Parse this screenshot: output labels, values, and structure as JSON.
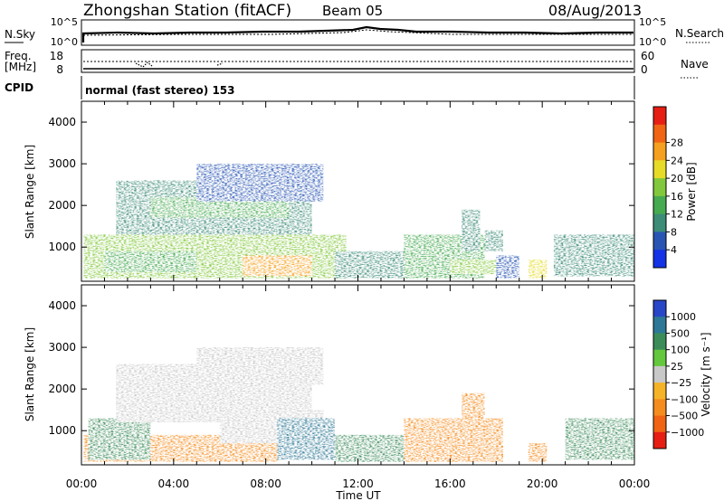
{
  "header": {
    "station": "Zhongshan Station (fitACF)",
    "beam": "Beam 05",
    "date": "08/Aug/2013"
  },
  "strip_panels": {
    "nsky": {
      "label": "N.Sky",
      "ticks": [
        "10^5",
        "10^0"
      ]
    },
    "nsearch": {
      "label": "N.Search",
      "ticks": [
        "10^5",
        "10^0"
      ]
    },
    "freq": {
      "label_line1": "Freq.",
      "label_line2": "[MHz]",
      "ticks": [
        "18",
        "8"
      ]
    },
    "nave": {
      "label": "Nave",
      "ticks": [
        "60",
        "0"
      ]
    },
    "cpid": {
      "label": "CPID",
      "text": "normal (fast stereo) 153"
    }
  },
  "chart_data": [
    {
      "type": "heatmap",
      "name": "power",
      "xlabel": "Time UT",
      "ylabel": "Slant Range [km]",
      "xlim": [
        0,
        24
      ],
      "ylim": [
        180,
        4500
      ],
      "x_ticks": [
        "00:00",
        "04:00",
        "08:00",
        "12:00",
        "16:00",
        "20:00",
        "00:00"
      ],
      "y_ticks": [
        1000,
        2000,
        3000,
        4000
      ],
      "colorbar": {
        "label": "Power [dB]",
        "ticks": [
          "4",
          "8",
          "12",
          "16",
          "20",
          "24",
          "28"
        ],
        "colors": [
          "#1432e6",
          "#2855b4",
          "#3c8c78",
          "#46aa50",
          "#82c83c",
          "#e6dc28",
          "#f5a01e",
          "#f06414",
          "#e61e14"
        ]
      },
      "regions": [
        {
          "t0": 0.1,
          "t1": 11.5,
          "r0": 250,
          "r1": 1300,
          "value": 17
        },
        {
          "t0": 7.0,
          "t1": 10.0,
          "r0": 300,
          "r1": 800,
          "value": 27
        },
        {
          "t0": 1.0,
          "t1": 5.0,
          "r0": 400,
          "r1": 900,
          "value": 14
        },
        {
          "t0": 1.5,
          "t1": 10.0,
          "r0": 1300,
          "r1": 2600,
          "value": 9
        },
        {
          "t0": 3.0,
          "t1": 9.0,
          "r0": 1700,
          "r1": 2200,
          "value": 13
        },
        {
          "t0": 5.0,
          "t1": 10.5,
          "r0": 2100,
          "r1": 3000,
          "value": 6
        },
        {
          "t0": 11.0,
          "t1": 14.0,
          "r0": 250,
          "r1": 900,
          "value": 10
        },
        {
          "t0": 14.0,
          "t1": 17.5,
          "r0": 250,
          "r1": 1300,
          "value": 13
        },
        {
          "t0": 16.0,
          "t1": 18.2,
          "r0": 350,
          "r1": 700,
          "value": 19
        },
        {
          "t0": 16.5,
          "t1": 17.3,
          "r0": 900,
          "r1": 1900,
          "value": 11
        },
        {
          "t0": 17.5,
          "t1": 18.3,
          "r0": 900,
          "r1": 1400,
          "value": 9
        },
        {
          "t0": 18.0,
          "t1": 19.0,
          "r0": 250,
          "r1": 800,
          "value": 6
        },
        {
          "t0": 19.4,
          "t1": 20.2,
          "r0": 250,
          "r1": 700,
          "value": 23
        },
        {
          "t0": 20.5,
          "t1": 24.0,
          "r0": 300,
          "r1": 1300,
          "value": 8
        }
      ]
    },
    {
      "type": "heatmap",
      "name": "velocity",
      "xlabel": "Time UT",
      "ylabel": "Slant Range [km]",
      "xlim": [
        0,
        24
      ],
      "ylim": [
        180,
        4500
      ],
      "x_ticks": [
        "00:00",
        "04:00",
        "08:00",
        "12:00",
        "16:00",
        "20:00",
        "00:00"
      ],
      "y_ticks": [
        1000,
        2000,
        3000,
        4000
      ],
      "colorbar": {
        "label": "Velocity [m s⁻¹]",
        "ticks": [
          "1000",
          "500",
          "100",
          "25",
          "−25",
          "−100",
          "−500",
          "−1000"
        ],
        "colors": [
          "#2846c8",
          "#2d7896",
          "#3c8c5a",
          "#64c83c",
          "#c8c8c8",
          "#f5b428",
          "#f58c1e",
          "#f06414",
          "#e61e14"
        ]
      },
      "regions": [
        {
          "t0": 0.1,
          "t1": 8.5,
          "r0": 250,
          "r1": 900,
          "value": -150
        },
        {
          "t0": 0.3,
          "t1": 3.0,
          "r0": 300,
          "r1": 1300,
          "value": 150
        },
        {
          "t0": 1.5,
          "t1": 10.0,
          "r0": 1200,
          "r1": 2600,
          "value": 0
        },
        {
          "t0": 5.0,
          "t1": 10.5,
          "r0": 2100,
          "r1": 3000,
          "value": 10
        },
        {
          "t0": 6.0,
          "t1": 10.5,
          "r0": 700,
          "r1": 1500,
          "value": 5
        },
        {
          "t0": 8.5,
          "t1": 11.0,
          "r0": 300,
          "r1": 1300,
          "value": 800
        },
        {
          "t0": 11.0,
          "t1": 14.0,
          "r0": 250,
          "r1": 900,
          "value": 150
        },
        {
          "t0": 14.0,
          "t1": 18.3,
          "r0": 250,
          "r1": 1300,
          "value": -150
        },
        {
          "t0": 16.5,
          "t1": 17.5,
          "r0": 900,
          "r1": 1900,
          "value": -150
        },
        {
          "t0": 19.4,
          "t1": 20.2,
          "r0": 250,
          "r1": 700,
          "value": -150
        },
        {
          "t0": 21.0,
          "t1": 24.0,
          "r0": 300,
          "r1": 1300,
          "value": 200
        }
      ]
    }
  ]
}
